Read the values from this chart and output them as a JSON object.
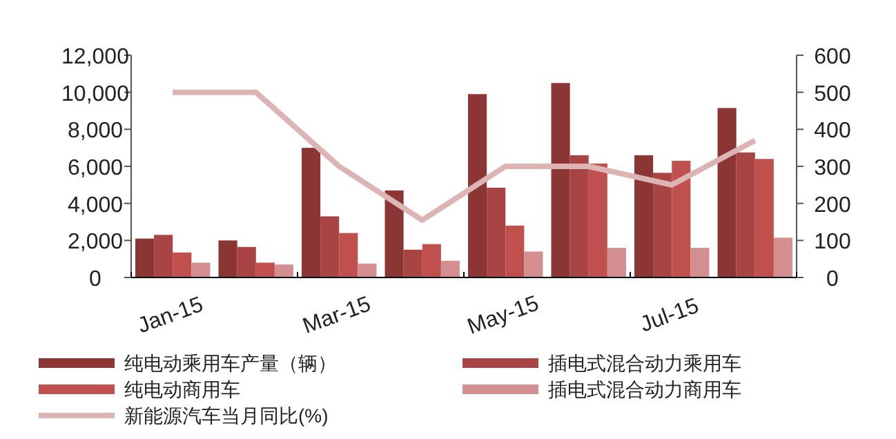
{
  "chart_data": {
    "type": "bar",
    "categories": [
      "Jan-15",
      null,
      "Mar-15",
      null,
      "May-15",
      null,
      "Jul-15",
      null
    ],
    "series": [
      {
        "name": "纯电动乘用车产量（辆）",
        "color": "#8b3535",
        "values": [
          2100,
          2000,
          7000,
          4700,
          9900,
          10500,
          6600,
          9150
        ]
      },
      {
        "name": "插电式混合动力乘用车",
        "color": "#a84444",
        "values": [
          2300,
          1650,
          3300,
          1500,
          4850,
          6600,
          5650,
          6750
        ]
      },
      {
        "name": "纯电动商用车",
        "color": "#c0504d",
        "values": [
          1350,
          800,
          2400,
          1800,
          2800,
          6150,
          6300,
          6400
        ]
      },
      {
        "name": "插电式混合动力商用车",
        "color": "#d49090",
        "values": [
          800,
          700,
          750,
          900,
          1400,
          1600,
          1600,
          2150
        ]
      },
      {
        "name": "新能源汽车当月同比(%)",
        "type": "line",
        "axis": "y2",
        "color": "#dcb4b4",
        "values": [
          500,
          500,
          300,
          155,
          300,
          300,
          250,
          370
        ]
      }
    ],
    "ylim": [
      0,
      12000
    ],
    "yticks": [
      {
        "value": 0,
        "label": "0"
      },
      {
        "value": 2000,
        "label": "2,000"
      },
      {
        "value": 4000,
        "label": "4,000"
      },
      {
        "value": 6000,
        "label": "6,000"
      },
      {
        "value": 8000,
        "label": "8,000"
      },
      {
        "value": 10000,
        "label": "10,000"
      },
      {
        "value": 12000,
        "label": "12,000"
      }
    ],
    "y2lim": [
      0,
      600
    ],
    "y2ticks": [
      0,
      100,
      200,
      300,
      400,
      500,
      600
    ],
    "grid": false,
    "legend": "bottom",
    "marker": "none",
    "line_style": "solid"
  }
}
